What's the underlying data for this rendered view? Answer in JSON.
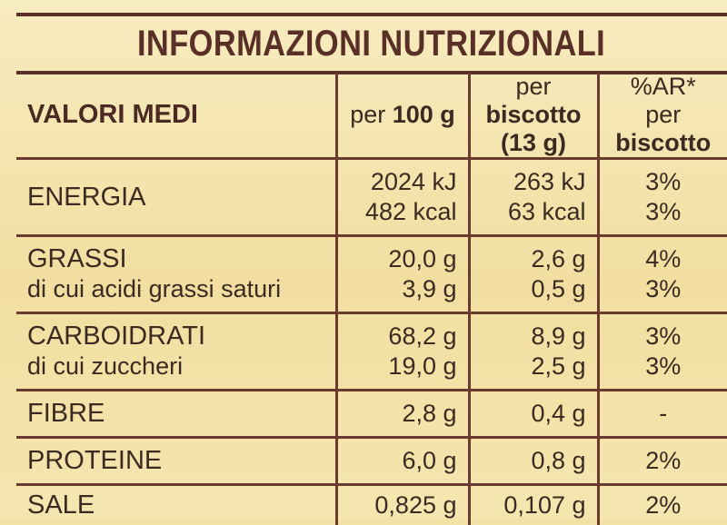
{
  "title": "INFORMAZIONI NUTRIZIONALI",
  "headers": {
    "label": "VALORI MEDI",
    "per100_prefix": "per",
    "per100_bold": "100 g",
    "perbisc_prefix": "per",
    "perbisc_bold": "biscotto",
    "perbisc_weight": "(13 g)",
    "ar_line1": "%AR*",
    "ar_prefix": "per",
    "ar_bold": "biscotto"
  },
  "rows": {
    "energia": {
      "name": "ENERGIA",
      "per100": [
        "2024 kJ",
        "482 kcal"
      ],
      "perbisc": [
        "263 kJ",
        "63 kcal"
      ],
      "ar": [
        "3%",
        "3%"
      ]
    },
    "grassi": {
      "name": "GRASSI",
      "sub": "di cui acidi grassi saturi",
      "per100": [
        "20,0 g",
        "3,9 g"
      ],
      "perbisc": [
        "2,6 g",
        "0,5 g"
      ],
      "ar": [
        "4%",
        "3%"
      ]
    },
    "carbo": {
      "name": "CARBOIDRATI",
      "sub": "di cui zuccheri",
      "per100": [
        "68,2 g",
        "19,0 g"
      ],
      "perbisc": [
        "8,9 g",
        "2,5 g"
      ],
      "ar": [
        "3%",
        "3%"
      ]
    },
    "fibre": {
      "name": "FIBRE",
      "per100": "2,8 g",
      "perbisc": "0,4 g",
      "ar": "-"
    },
    "proteine": {
      "name": "PROTEINE",
      "per100": "6,0 g",
      "perbisc": "0,8 g",
      "ar": "2%"
    },
    "sale": {
      "name": "SALE",
      "per100": "0,825 g",
      "perbisc": "0,107 g",
      "ar": "2%"
    }
  }
}
